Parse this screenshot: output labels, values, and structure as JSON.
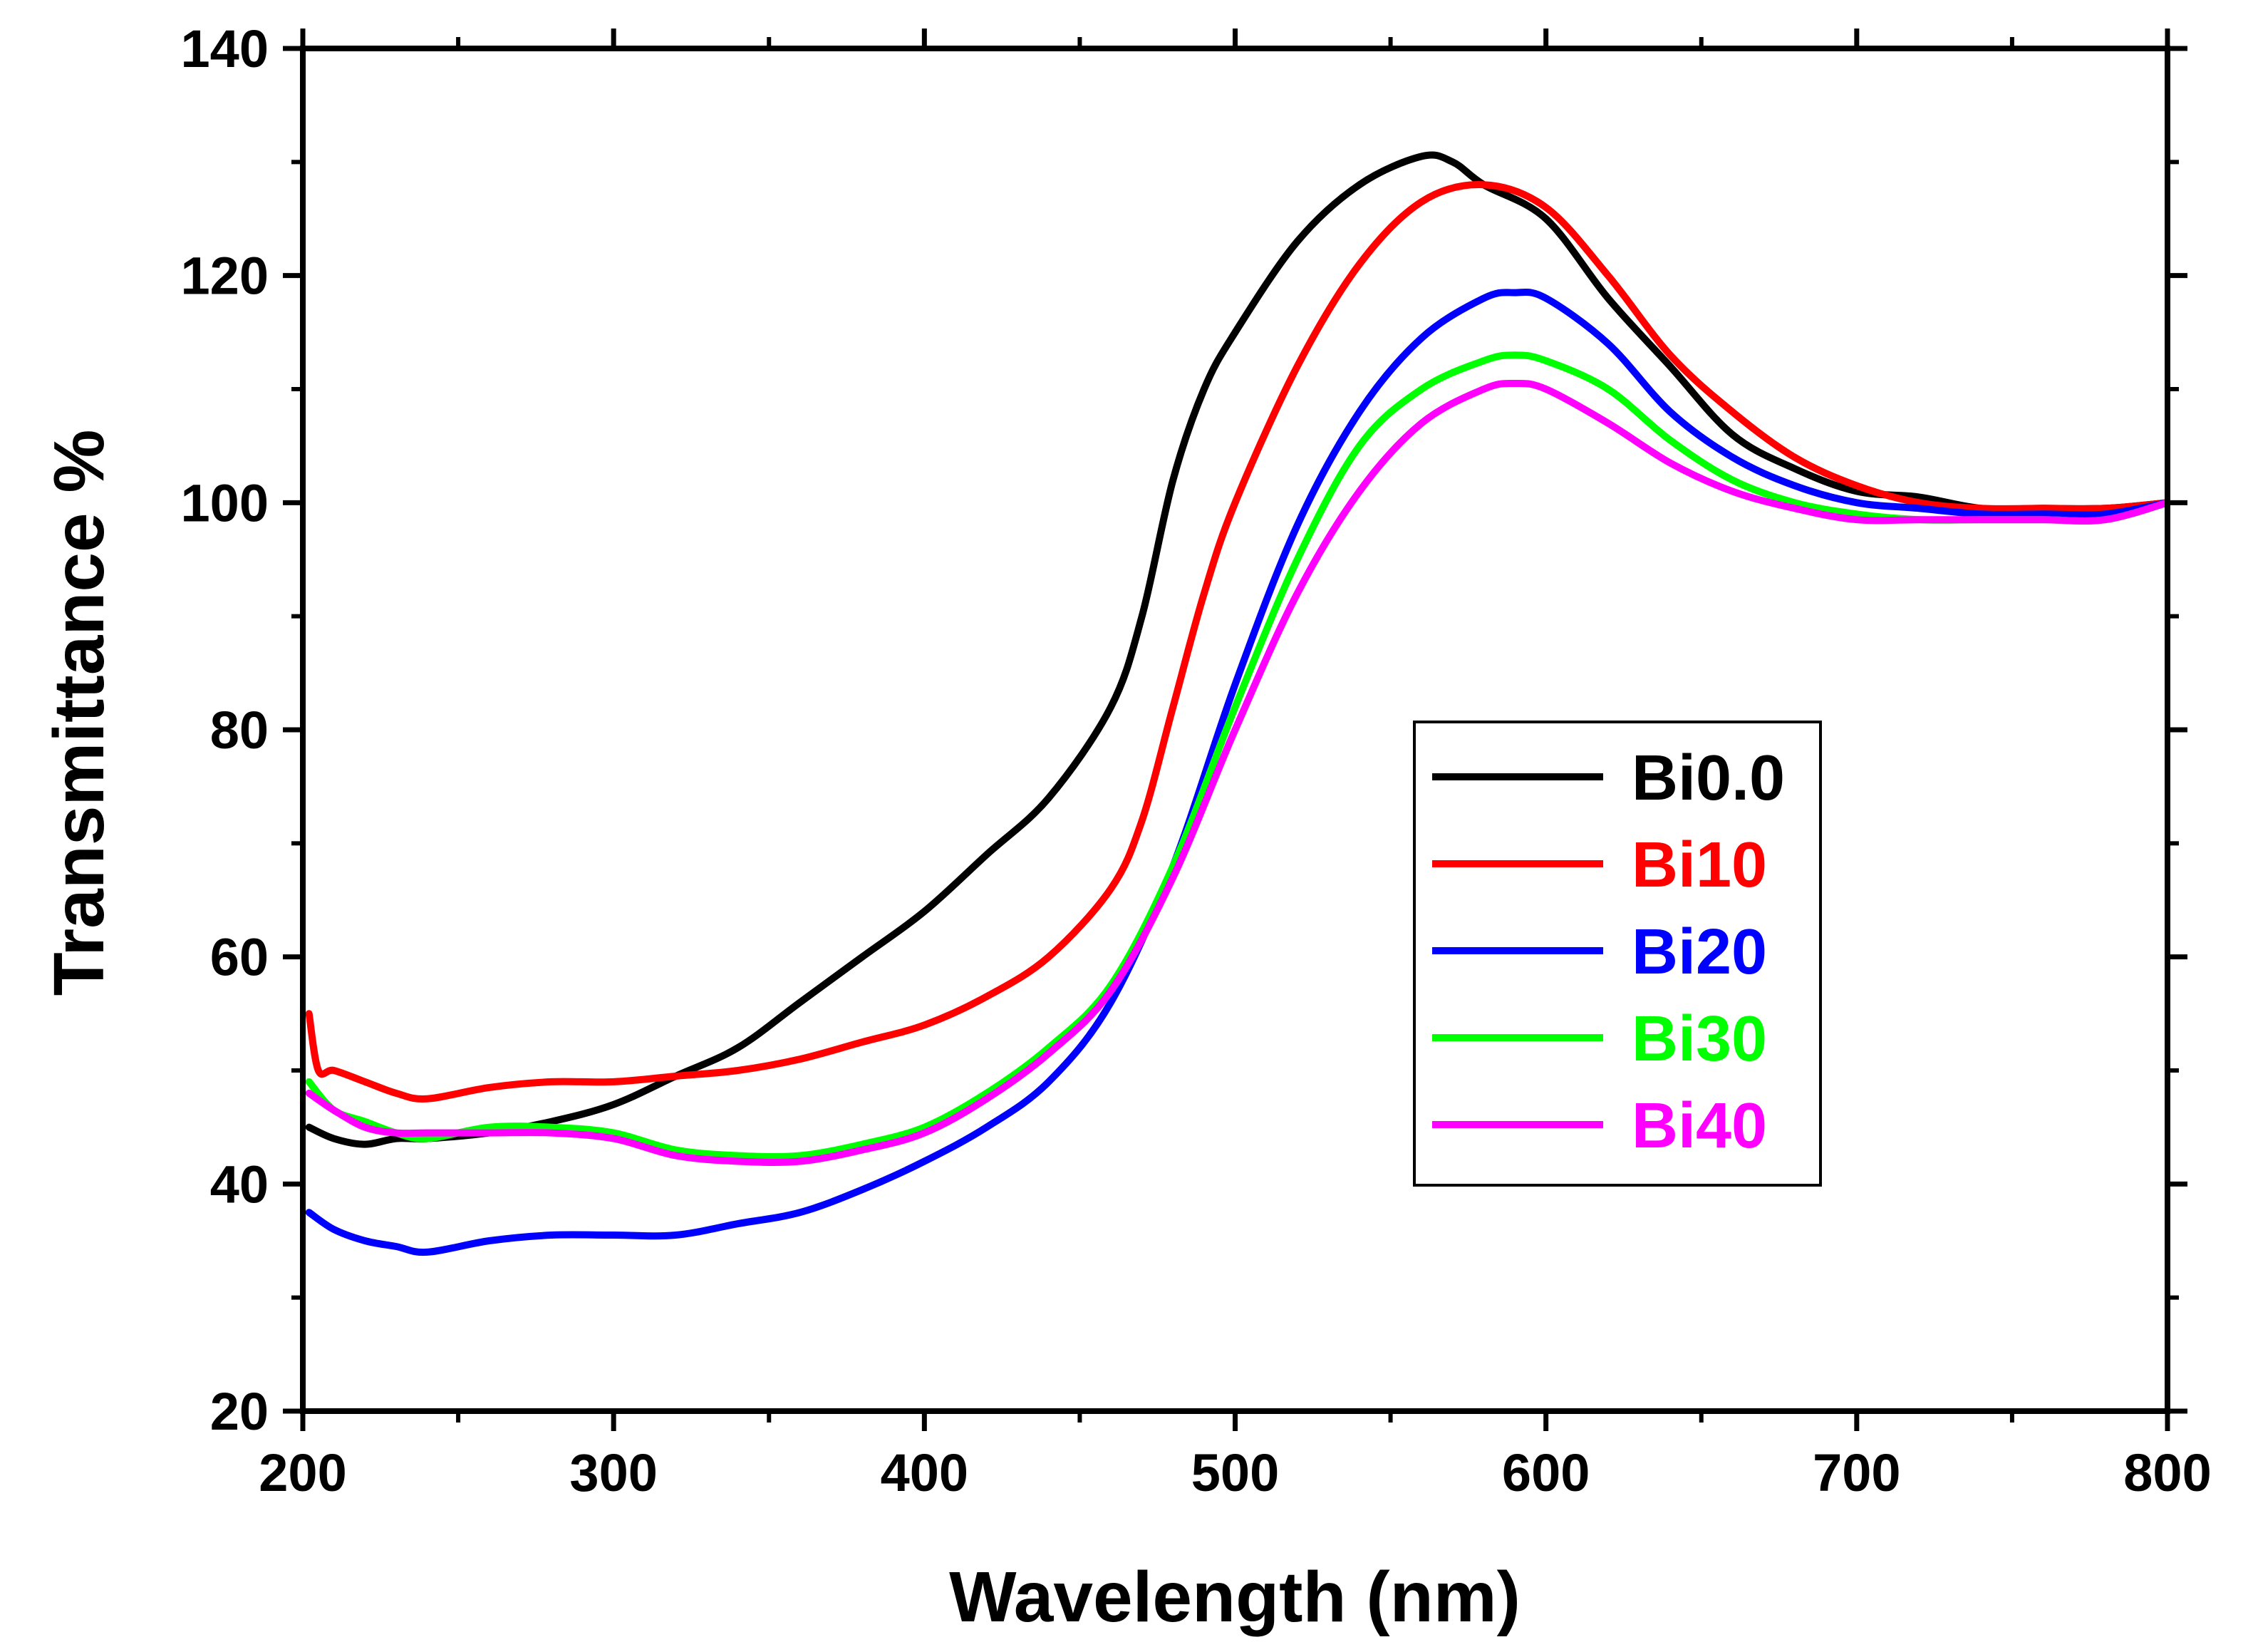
{
  "chart_data": {
    "type": "line",
    "title": "",
    "xlabel": "Wavelength (nm)",
    "ylabel": "Transmittance %",
    "xlim": [
      200,
      800
    ],
    "ylim": [
      20,
      140
    ],
    "xticks": [
      200,
      300,
      400,
      500,
      600,
      700,
      800
    ],
    "yticks": [
      20,
      40,
      60,
      80,
      100,
      120,
      140
    ],
    "grid": false,
    "legend_position": "center-right",
    "series": [
      {
        "name": "Bi0.0",
        "color": "#000000",
        "x": [
          202,
          210,
          220,
          230,
          240,
          260,
          280,
          300,
          320,
          340,
          360,
          380,
          400,
          420,
          440,
          460,
          470,
          480,
          490,
          500,
          520,
          540,
          560,
          570,
          580,
          600,
          620,
          640,
          660,
          680,
          700,
          720,
          740,
          760,
          780,
          800
        ],
        "values": [
          45,
          44,
          43.5,
          44,
          44,
          44.5,
          45.5,
          47,
          49.5,
          52,
          56,
          60,
          64,
          69,
          74,
          82,
          90,
          102,
          110,
          115,
          123,
          128,
          130.5,
          130,
          128,
          125,
          118,
          112,
          106,
          103,
          101,
          100.5,
          99.5,
          99.5,
          99.5,
          100
        ]
      },
      {
        "name": "Bi10",
        "color": "#ff0000",
        "x": [
          202,
          205,
          210,
          220,
          230,
          240,
          260,
          280,
          300,
          320,
          340,
          360,
          380,
          400,
          420,
          440,
          460,
          470,
          480,
          490,
          500,
          520,
          540,
          560,
          580,
          600,
          620,
          640,
          660,
          680,
          700,
          720,
          740,
          760,
          780,
          800
        ],
        "values": [
          55,
          50,
          50,
          49,
          48,
          47.5,
          48.5,
          49,
          49,
          49.5,
          50,
          51,
          52.5,
          54,
          56.5,
          60,
          66,
          72,
          82,
          92,
          100,
          112,
          121,
          126.5,
          128,
          126,
          120,
          113,
          108,
          104,
          101.5,
          100,
          99.5,
          99.5,
          99.5,
          100
        ]
      },
      {
        "name": "Bi20",
        "color": "#0000ff",
        "x": [
          202,
          210,
          220,
          230,
          240,
          260,
          280,
          300,
          320,
          340,
          360,
          380,
          400,
          420,
          440,
          460,
          480,
          500,
          520,
          540,
          560,
          580,
          590,
          600,
          620,
          640,
          660,
          680,
          700,
          720,
          740,
          760,
          780,
          800
        ],
        "values": [
          37.5,
          36,
          35,
          34.5,
          34,
          35,
          35.5,
          35.5,
          35.5,
          36.5,
          37.5,
          39.5,
          42,
          45,
          49,
          56,
          68,
          84,
          98,
          108,
          114.5,
          118,
          118.5,
          118,
          114,
          108,
          104,
          101.5,
          100,
          99.5,
          99,
          99,
          99,
          100
        ]
      },
      {
        "name": "Bi30",
        "color": "#00ff00",
        "x": [
          202,
          210,
          220,
          230,
          240,
          260,
          280,
          300,
          320,
          340,
          360,
          380,
          400,
          420,
          440,
          460,
          480,
          500,
          520,
          540,
          560,
          580,
          590,
          600,
          620,
          640,
          660,
          680,
          700,
          720,
          740,
          760,
          780,
          800
        ],
        "values": [
          49,
          46.5,
          45.5,
          44.5,
          44,
          45,
          45,
          44.5,
          43,
          42.5,
          42.5,
          43.5,
          45,
          48,
          52,
          57.5,
          68,
          82,
          95,
          105,
          110,
          112.5,
          113,
          112.5,
          110,
          105.5,
          102,
          100,
          99,
          98.5,
          98.5,
          98.5,
          98.5,
          100
        ]
      },
      {
        "name": "Bi40",
        "color": "#ff00ff",
        "x": [
          202,
          210,
          220,
          230,
          240,
          260,
          280,
          300,
          320,
          340,
          360,
          380,
          400,
          420,
          440,
          460,
          480,
          500,
          520,
          540,
          560,
          580,
          590,
          600,
          620,
          640,
          660,
          680,
          700,
          720,
          740,
          760,
          780,
          800
        ],
        "values": [
          48,
          46.5,
          45,
          44.5,
          44.5,
          44.5,
          44.5,
          44,
          42.5,
          42,
          42,
          43,
          44.5,
          47.5,
          51.5,
          57,
          67,
          80,
          92,
          101,
          107,
          110,
          110.5,
          110,
          107,
          103.5,
          101,
          99.5,
          98.5,
          98.5,
          98.5,
          98.5,
          98.5,
          100
        ]
      }
    ]
  }
}
